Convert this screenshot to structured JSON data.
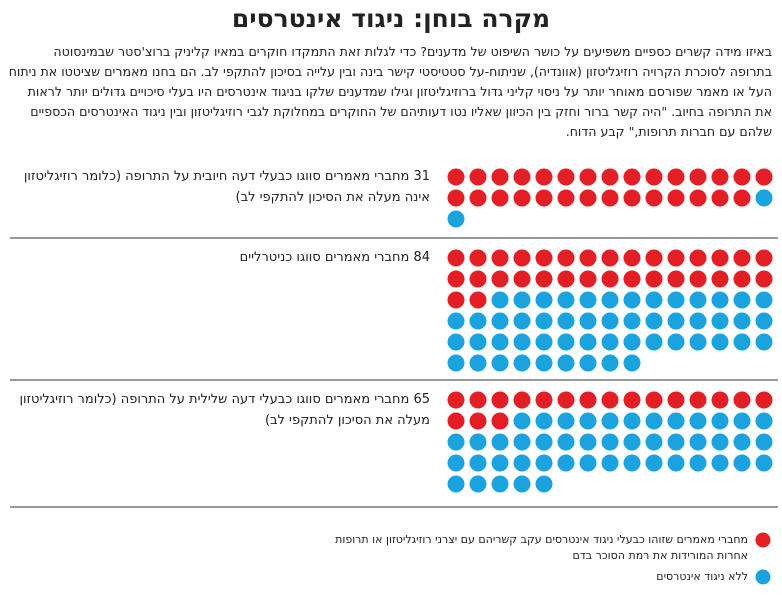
{
  "chart_data": {
    "type": "waffle",
    "title": "מקרה בוחן: ניגוד אינטרסים",
    "subtitle": "באיזו מידה קשרים כספיים משפיעים על כושר השיפוט של מדענים? כדי לגלות זאת התמקדו חוקרים במאיו קליניק ברוצ'סטר שבמינסוטה בתרופה לסוכרת הקרויה רוזיגליטזון (אוונדיה), שניתוח-על סטטיסטי קישר בינה ובין עלייה בסיכון להתקפי לב. הם בחנו מאמרים שציטטו את ניתוח העל או מאמר שפורסם מאוחר יותר על ניסוי קליני גדול ברוזיגליטזון וגילו שמדענים שלקו בניגוד אינטרסים היו בעלי סיכויים גדולים יותר לראות את התרופה בחיוב. \"היה קשר ברור וחזק בין הכיוון שאליו נטו דעותיהם של החוקרים במחלוקת לגבי רוזיגליטזון ובין ניגוד האינטרסים הכספיים שלהם עם חברות תרופות,\" קבע הדוח.",
    "categories": [
      "31 מחברי מאמרים סווגו כבעלי דעה חיובית על התרופה (כלומר רוזיגליטזון אינה מעלה את הסיכון להתקפי לב)",
      "84 מחברי מאמרים סווגו כניטרליים",
      "65 מחברי מאמרים סווגו כבעלי דעה שלילית על התרופה (כלומר רוזיגליטזון מעלה את הסיכון להתקפי לב)"
    ],
    "series": [
      {
        "name": "מחברי מאמרים שזוהו כבעלי ניגוד אינטרסים עקב קשריהם עם יצרני רוזיגליטזון או תרופות אחרות המורידות את רמת הסוכר בדם",
        "color": "#e31e24",
        "values": [
          29,
          32,
          18
        ]
      },
      {
        "name": "ללא ניגוד אינטרסים",
        "color": "#1aa3de",
        "values": [
          2,
          52,
          47
        ]
      }
    ]
  }
}
